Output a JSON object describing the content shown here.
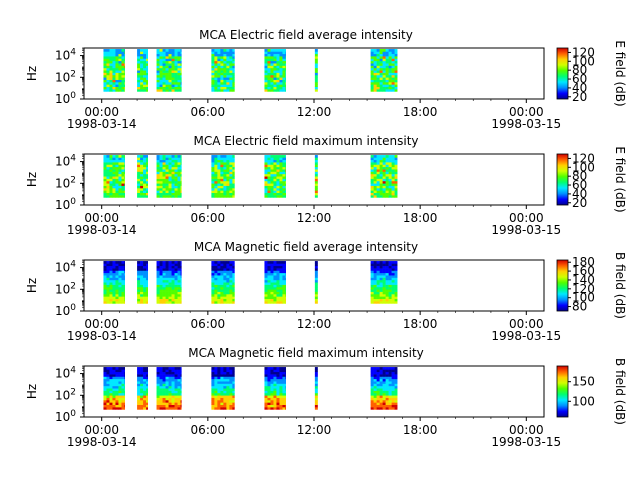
{
  "colors": {
    "colormap": [
      "#00008f",
      "#0000ff",
      "#0090ff",
      "#00e8ff",
      "#00ff70",
      "#50ff00",
      "#d0ff00",
      "#ffd000",
      "#ff6000",
      "#d00000"
    ]
  },
  "chart_data": [
    {
      "type": "heatmap",
      "title": "MCA  Electric field average intensity",
      "ylabel": "Hz",
      "y_scale": "log",
      "ylim": [
        1,
        50000
      ],
      "y_ticks": [
        {
          "exp": "0",
          "value": 1
        },
        {
          "exp": "2",
          "value": 100
        },
        {
          "exp": "4",
          "value": 10000
        }
      ],
      "x_ticks": [
        "00:00",
        "06:00",
        "12:00",
        "18:00",
        "00:00"
      ],
      "x_range_hours": [
        -1,
        25
      ],
      "x_start_date": "1998-03-14",
      "x_end_date": "1998-03-15",
      "colorbar": {
        "label": "E field (dB)",
        "min": 15,
        "max": 130,
        "ticks": [
          20,
          40,
          60,
          80,
          100,
          120
        ]
      },
      "coverage_hours": [
        [
          0.1,
          1.3
        ],
        [
          2.0,
          2.6
        ],
        [
          3.1,
          4.5
        ],
        [
          6.2,
          7.5
        ],
        [
          9.2,
          10.4
        ],
        [
          12.05,
          12.2
        ],
        [
          15.2,
          16.7
        ]
      ],
      "data_freq_range_hz": [
        5,
        40000
      ]
    },
    {
      "type": "heatmap",
      "title": "MCA  Electric field maximum intensity",
      "ylabel": "Hz",
      "y_scale": "log",
      "ylim": [
        1,
        50000
      ],
      "y_ticks": [
        {
          "exp": "0",
          "value": 1
        },
        {
          "exp": "2",
          "value": 100
        },
        {
          "exp": "4",
          "value": 10000
        }
      ],
      "x_ticks": [
        "00:00",
        "06:00",
        "12:00",
        "18:00",
        "00:00"
      ],
      "x_range_hours": [
        -1,
        25
      ],
      "x_start_date": "1998-03-14",
      "x_end_date": "1998-03-15",
      "colorbar": {
        "label": "E field (dB)",
        "min": 15,
        "max": 130,
        "ticks": [
          20,
          40,
          60,
          80,
          100,
          120
        ]
      },
      "coverage_hours": [
        [
          0.1,
          1.3
        ],
        [
          2.0,
          2.6
        ],
        [
          3.1,
          4.5
        ],
        [
          6.2,
          7.5
        ],
        [
          9.2,
          10.4
        ],
        [
          12.05,
          12.2
        ],
        [
          15.2,
          16.7
        ]
      ],
      "data_freq_range_hz": [
        5,
        40000
      ]
    },
    {
      "type": "heatmap",
      "title": "MCA  Magnetic field average intensity",
      "ylabel": "Hz",
      "y_scale": "log",
      "ylim": [
        1,
        50000
      ],
      "y_ticks": [
        {
          "exp": "0",
          "value": 1
        },
        {
          "exp": "2",
          "value": 100
        },
        {
          "exp": "4",
          "value": 10000
        }
      ],
      "x_ticks": [
        "00:00",
        "06:00",
        "12:00",
        "18:00",
        "00:00"
      ],
      "x_range_hours": [
        -1,
        25
      ],
      "x_start_date": "1998-03-14",
      "x_end_date": "1998-03-15",
      "colorbar": {
        "label": "B field (dB)",
        "min": 70,
        "max": 185,
        "ticks": [
          80,
          100,
          120,
          140,
          160,
          180
        ]
      },
      "coverage_hours": [
        [
          0.1,
          1.3
        ],
        [
          2.0,
          2.6
        ],
        [
          3.1,
          4.5
        ],
        [
          6.2,
          7.5
        ],
        [
          9.2,
          10.4
        ],
        [
          12.05,
          12.2
        ],
        [
          15.2,
          16.7
        ]
      ],
      "data_freq_range_hz": [
        5,
        40000
      ]
    },
    {
      "type": "heatmap",
      "title": "MCA  Magnetic field maximum intensity",
      "ylabel": "Hz",
      "y_scale": "log",
      "ylim": [
        1,
        50000
      ],
      "y_ticks": [
        {
          "exp": "0",
          "value": 1
        },
        {
          "exp": "2",
          "value": 100
        },
        {
          "exp": "4",
          "value": 10000
        }
      ],
      "x_ticks": [
        "00:00",
        "06:00",
        "12:00",
        "18:00",
        "00:00"
      ],
      "x_range_hours": [
        -1,
        25
      ],
      "x_start_date": "1998-03-14",
      "x_end_date": "1998-03-15",
      "colorbar": {
        "label": "B field (dB)",
        "min": 60,
        "max": 190,
        "ticks": [
          100,
          150
        ]
      },
      "coverage_hours": [
        [
          0.1,
          1.3
        ],
        [
          2.0,
          2.6
        ],
        [
          3.1,
          4.5
        ],
        [
          6.2,
          7.5
        ],
        [
          9.2,
          10.4
        ],
        [
          12.05,
          12.2
        ],
        [
          15.2,
          16.7
        ]
      ],
      "data_freq_range_hz": [
        5,
        40000
      ]
    }
  ]
}
